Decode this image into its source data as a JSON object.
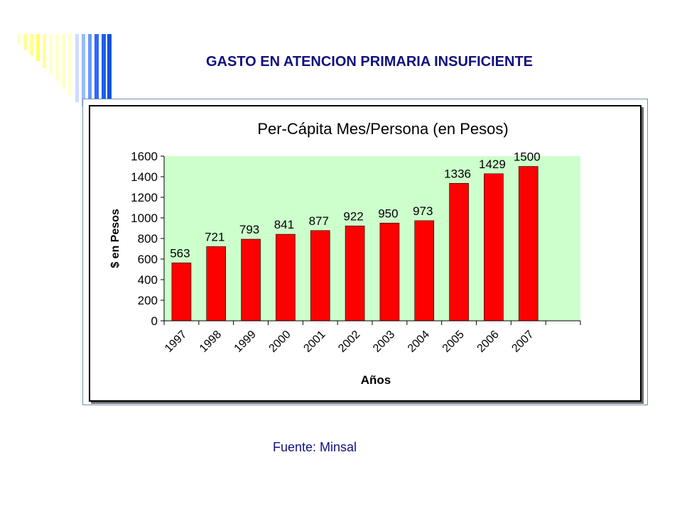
{
  "slide": {
    "title": "GASTO  EN  ATENCION PRIMARIA INSUFICIENTE",
    "source": "Fuente: Minsal"
  },
  "chart_data": {
    "type": "bar",
    "title": "Per-Cápita Mes/Persona (en Pesos)",
    "xlabel": "Años",
    "ylabel": "$ en Pesos",
    "categories": [
      "1997",
      "1998",
      "1999",
      "2000",
      "2001",
      "2002",
      "2003",
      "2004",
      "2005",
      "2006",
      "2007"
    ],
    "values": [
      563,
      721,
      793,
      841,
      877,
      922,
      950,
      973,
      1336,
      1429,
      1500
    ],
    "ylim": [
      0,
      1600
    ],
    "yticks": [
      0,
      200,
      400,
      600,
      800,
      1000,
      1200,
      1400,
      1600
    ],
    "grid": false,
    "legend": "none",
    "colors": {
      "bar": "#ff0000",
      "bar_edge": "#000000",
      "plot_background": "#ccffcc"
    }
  }
}
